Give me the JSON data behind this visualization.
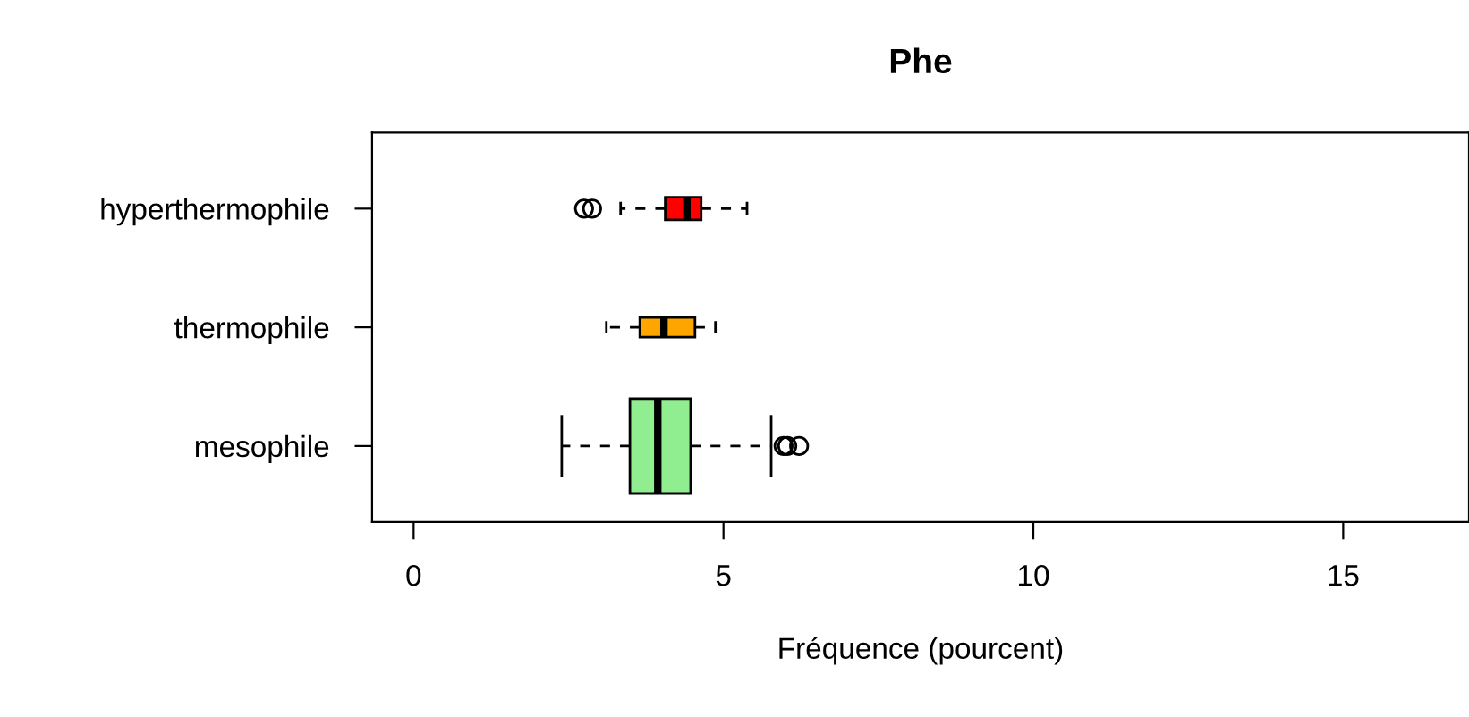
{
  "chart_data": {
    "type": "box",
    "title": "Phe",
    "xlabel": "Fréquence (pourcent)",
    "orientation": "horizontal",
    "categories": [
      "hyperthermophile",
      "thermophile",
      "mesophile"
    ],
    "colors": [
      "#ff0000",
      "#ffa500",
      "#90ee90"
    ],
    "boxes": [
      {
        "low": 3.34,
        "q1": 4.06,
        "median": 4.41,
        "q3": 4.64,
        "high": 5.38,
        "outliers": [
          2.75,
          2.88
        ]
      },
      {
        "low": 3.11,
        "q1": 3.65,
        "median": 4.04,
        "q3": 4.54,
        "high": 4.87
      },
      {
        "low": 2.39,
        "q1": 3.49,
        "median": 3.94,
        "q3": 4.47,
        "high": 5.77,
        "outliers": [
          5.97,
          6.03,
          6.22
        ]
      }
    ],
    "xlim": [
      -0.67,
      17.03
    ],
    "xticks": [
      0,
      5,
      10,
      15
    ],
    "grid": false,
    "legend": false
  }
}
